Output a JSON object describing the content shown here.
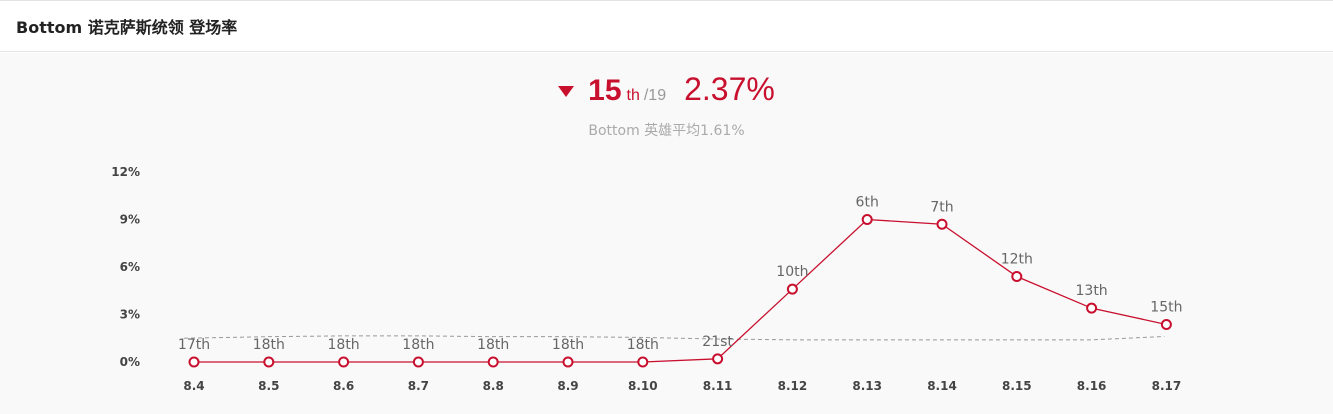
{
  "header": {
    "title": "Bottom 诺克萨斯统领 登场率"
  },
  "summary": {
    "trend": "down",
    "rank": "15",
    "rank_suffix": "th",
    "rank_total": "/19",
    "rate": "2.37%",
    "avg_note": "Bottom 英雄平均1.61%"
  },
  "colors": {
    "accent": "#c8102e",
    "avg_line": "#999999",
    "background": "#f9f9f9"
  },
  "chart_data": {
    "type": "line",
    "categories": [
      "8.4",
      "8.5",
      "8.6",
      "8.7",
      "8.8",
      "8.9",
      "8.10",
      "8.11",
      "8.12",
      "8.13",
      "8.14",
      "8.15",
      "8.16",
      "8.17"
    ],
    "ylim": [
      0,
      12
    ],
    "yticks": [
      {
        "value": 0,
        "label": "0%"
      },
      {
        "value": 3,
        "label": "3%"
      },
      {
        "value": 6,
        "label": "6%"
      },
      {
        "value": 9,
        "label": "9%"
      },
      {
        "value": 12,
        "label": "12%"
      }
    ],
    "series": [
      {
        "values": [
          0.0,
          0.0,
          0.0,
          0.0,
          0.0,
          0.0,
          0.0,
          0.2,
          4.6,
          9.0,
          8.7,
          5.4,
          3.4,
          2.37
        ],
        "labels": [
          "17th",
          "18th",
          "18th",
          "18th",
          "18th",
          "18th",
          "18th",
          "21st",
          "10th",
          "6th",
          "7th",
          "12th",
          "13th",
          "15th"
        ]
      },
      {
        "style": "dashed",
        "values": [
          1.5,
          1.6,
          1.65,
          1.65,
          1.6,
          1.6,
          1.55,
          1.45,
          1.4,
          1.4,
          1.4,
          1.4,
          1.4,
          1.61
        ]
      }
    ],
    "grid": false,
    "legend": "none"
  }
}
